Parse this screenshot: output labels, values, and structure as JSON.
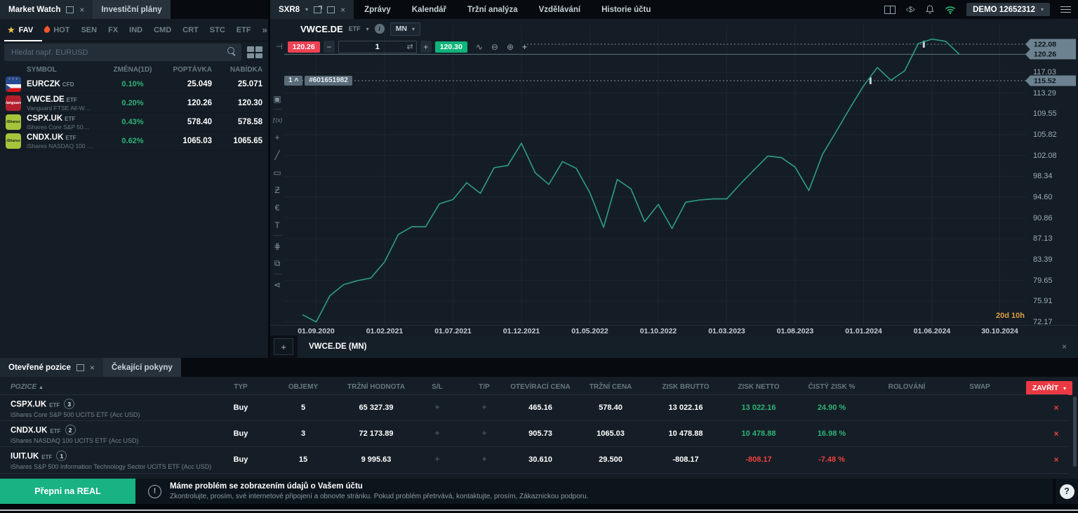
{
  "colors": {
    "accent_green": "#2eb377",
    "accent_red": "#ee4140",
    "chart_line": "#2f9e85",
    "buy_badge": "#0fb47a",
    "sell_badge": "#ef4154",
    "real_button": "#19b283",
    "countdown_orange": "#de9f40",
    "price_tag": "#6d8291"
  },
  "top": {
    "left_tabs": [
      {
        "label": "Market Watch",
        "active": true
      },
      {
        "label": "Investiční plány",
        "active": false
      }
    ],
    "chart_tab_label": "SXR8",
    "menu_tabs": [
      "Zprávy",
      "Kalendář",
      "Tržní analýza",
      "Vzdělávání",
      "Historie účtu"
    ],
    "currency_icon_text": "‹$›",
    "account_label": "DEMO 12652312"
  },
  "market_watch": {
    "categories": [
      {
        "label": "FAV",
        "icon": "star-icon",
        "active": true
      },
      {
        "label": "HOT",
        "icon": "flame-icon",
        "active": false
      },
      {
        "label": "SEN"
      },
      {
        "label": "FX"
      },
      {
        "label": "IND"
      },
      {
        "label": "CMD"
      },
      {
        "label": "CRT"
      },
      {
        "label": "STC"
      },
      {
        "label": "ETF"
      }
    ],
    "more_symbol": "»",
    "search_placeholder": "Hledat např. EURUSD",
    "columns": [
      "SYMBOL",
      "ZMĚNA(1D)",
      "POPTÁVKA",
      "NABÍDKA"
    ],
    "rows": [
      {
        "symbol": "EURCZK",
        "type": "CFD",
        "desc": "",
        "change": "0.10%",
        "bid": "25.049",
        "ask": "25.071",
        "icon": "flag-cz",
        "icon_bg": "#27498f",
        "icon_label": "",
        "icon_fg": "#ffffff"
      },
      {
        "symbol": "VWCE.DE",
        "type": "ETF",
        "desc": "Vanguard FTSE All-W…",
        "change": "0.20%",
        "bid": "120.26",
        "ask": "120.30",
        "icon": "brand",
        "icon_bg": "#b41f2e",
        "icon_label": "Vanguard",
        "icon_fg": "#ffffff"
      },
      {
        "symbol": "CSPX.UK",
        "type": "ETF",
        "desc": "iShares Core S&P 50…",
        "change": "0.43%",
        "bid": "578.40",
        "ask": "578.58",
        "icon": "brand",
        "icon_bg": "#a6c43a",
        "icon_label": "iShares",
        "icon_fg": "#16211c"
      },
      {
        "symbol": "CNDX.UK",
        "type": "ETF",
        "desc": "iShares NASDAQ 100 …",
        "change": "0.62%",
        "bid": "1065.03",
        "ask": "1065.65",
        "icon": "brand",
        "icon_bg": "#a6c43a",
        "icon_label": "iShares",
        "icon_fg": "#16211c"
      }
    ]
  },
  "chart": {
    "symbol": "VWCE.DE",
    "symbol_type": "ETF",
    "timeframe": "MN",
    "sell_price": "120.26",
    "volume": "1",
    "buy_price": "120.30",
    "order_badge_count": "1",
    "order_badge_id": "#601651982",
    "countdown": "20d 10h",
    "bottom_tab_label": "VWCE.DE (MN)",
    "tools": [
      "chart-type",
      "indicators",
      "crosshair",
      "trend-line",
      "rectangle",
      "elliott-wave",
      "fibonacci",
      "text",
      "chart-settings",
      "objects",
      "share"
    ]
  },
  "chart_data": {
    "type": "line",
    "title": "VWCE.DE (MN)",
    "xlabel": "",
    "ylabel": "",
    "legend": false,
    "grid": true,
    "line_color": "#2f9e85",
    "ylim": [
      71.5,
      124.5
    ],
    "x": [
      "08.2020",
      "09.2020",
      "10.2020",
      "11.2020",
      "12.2020",
      "01.2021",
      "02.2021",
      "03.2021",
      "04.2021",
      "05.2021",
      "06.2021",
      "07.2021",
      "08.2021",
      "09.2021",
      "10.2021",
      "11.2021",
      "12.2021",
      "01.2022",
      "02.2022",
      "03.2022",
      "04.2022",
      "05.2022",
      "06.2022",
      "07.2022",
      "08.2022",
      "09.2022",
      "10.2022",
      "11.2022",
      "12.2022",
      "01.2023",
      "02.2023",
      "03.2023",
      "04.2023",
      "05.2023",
      "06.2023",
      "07.2023",
      "08.2023",
      "09.2023",
      "10.2023",
      "11.2023",
      "12.2023",
      "01.2024",
      "02.2024",
      "03.2024",
      "04.2024",
      "05.2024",
      "06.2024",
      "07.2024",
      "08.2024"
    ],
    "values": [
      73.5,
      72.2,
      76.9,
      78.9,
      79.6,
      80.1,
      83.0,
      87.9,
      89.3,
      89.3,
      93.4,
      94.2,
      97.2,
      95.3,
      99.9,
      100.3,
      104.3,
      99.0,
      96.9,
      101.0,
      99.8,
      95.4,
      89.2,
      97.8,
      96.1,
      90.2,
      93.3,
      89.0,
      93.7,
      94.1,
      94.3,
      94.3,
      97.0,
      99.5,
      102.0,
      101.7,
      100.0,
      95.8,
      102.3,
      106.4,
      110.6,
      114.6,
      117.9,
      115.6,
      117.3,
      122.2,
      123.0,
      122.6,
      120.26
    ],
    "x_tick_labels": [
      {
        "label": "01.09.2020",
        "i": 1
      },
      {
        "label": "01.02.2021",
        "i": 6
      },
      {
        "label": "01.07.2021",
        "i": 11
      },
      {
        "label": "01.12.2021",
        "i": 16
      },
      {
        "label": "01.05.2022",
        "i": 21
      },
      {
        "label": "01.10.2022",
        "i": 26
      },
      {
        "label": "01.03.2023",
        "i": 31
      },
      {
        "label": "01.08.2023",
        "i": 36
      },
      {
        "label": "01.01.2024",
        "i": 41
      },
      {
        "label": "01.06.2024",
        "i": 46
      },
      {
        "label": "30.10.2024",
        "i": 50.95
      }
    ],
    "y_ticks": [
      "117.03",
      "113.29",
      "109.55",
      "105.82",
      "102.08",
      "98.34",
      "94.60",
      "90.86",
      "87.13",
      "83.39",
      "79.65",
      "75.91",
      "72.17"
    ],
    "price_tags": [
      "122.08",
      "120.26",
      "115.52"
    ],
    "levels": [
      {
        "price": 122.08,
        "style": "dashed",
        "marker_i": 45.4,
        "start_i": 16.4
      },
      {
        "price": 120.26,
        "style": "solid"
      },
      {
        "price": 115.52,
        "style": "dashed",
        "marker_i": 41.5,
        "badge": "1 #601651982"
      }
    ]
  },
  "positions": {
    "tabs": [
      {
        "label": "Otevřené pozice",
        "active": true
      },
      {
        "label": "Čekající pokyny",
        "active": false
      }
    ],
    "columns": [
      "POZICE",
      "TYP",
      "OBJEMY",
      "TRŽNÍ HODNOTA",
      "S/L",
      "T/P",
      "OTEVÍRACÍ CENA",
      "TRŽNÍ CENA",
      "ZISK BRUTTO",
      "ZISK NETTO",
      "ČISTÝ ZISK %",
      "ROLOVÁNÍ",
      "SWAP"
    ],
    "close_all_label": "ZAVŘÍT",
    "rows": [
      {
        "symbol": "CSPX.UK",
        "type": "ETF",
        "count": "3",
        "desc": "iShares Core S&P 500 UCITS ETF (Acc USD)",
        "side": "Buy",
        "volume": "5",
        "market_value": "65 327.39",
        "sl": "+",
        "tp": "+",
        "open_price": "465.16",
        "market_price": "578.40",
        "gross_profit": "13 022.16",
        "net_profit": "13 022.16",
        "net_profit_pct": "24.90 %",
        "rollover": "",
        "swap": "",
        "profit_positive": true
      },
      {
        "symbol": "CNDX.UK",
        "type": "ETF",
        "count": "2",
        "desc": "iShares NASDAQ 100 UCITS ETF (Acc USD)",
        "side": "Buy",
        "volume": "3",
        "market_value": "72 173.89",
        "sl": "+",
        "tp": "+",
        "open_price": "905.73",
        "market_price": "1065.03",
        "gross_profit": "10 478.88",
        "net_profit": "10 478.88",
        "net_profit_pct": "16.98 %",
        "rollover": "",
        "swap": "",
        "profit_positive": true
      },
      {
        "symbol": "IUIT.UK",
        "type": "ETF",
        "count": "1",
        "desc": "iShares S&P 500 Information Technology Sector UCITS ETF (Acc USD)",
        "side": "Buy",
        "volume": "15",
        "market_value": "9 995.63",
        "sl": "+",
        "tp": "+",
        "open_price": "30.610",
        "market_price": "29.500",
        "gross_profit": "-808.17",
        "net_profit": "-808.17",
        "net_profit_pct": "-7.48 %",
        "rollover": "",
        "swap": "",
        "profit_positive": false
      }
    ]
  },
  "notification": {
    "switch_button": "Přepni na REAL",
    "title": "Máme problém se zobrazením údajů o Vašem účtu",
    "subtitle": "Zkontrolujte, prosím, své internetové připojení a obnovte stránku. Pokud problém přetrvává, kontaktujte, prosím, Zákaznickou podporu.",
    "help_icon": "?"
  }
}
